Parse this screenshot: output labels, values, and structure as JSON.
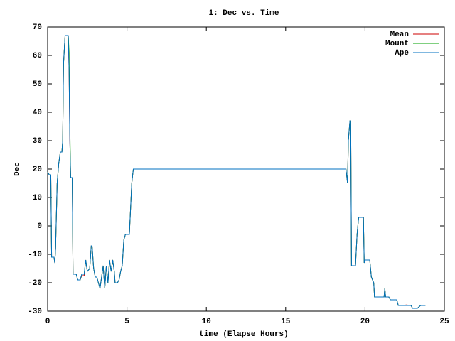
{
  "chart_data": {
    "type": "line",
    "title": "1: Dec vs. Time",
    "x_label": "time (Elapse Hours)",
    "y_label": "Dec",
    "x": [
      0,
      0.1,
      0.2,
      0.25,
      0.4,
      0.45,
      0.5,
      0.6,
      0.7,
      0.8,
      0.9,
      0.95,
      1.0,
      1.1,
      1.3,
      1.35,
      1.4,
      1.45,
      1.55,
      1.6,
      1.8,
      1.9,
      2.05,
      2.15,
      2.3,
      2.4,
      2.5,
      2.65,
      2.75,
      2.8,
      2.9,
      3.0,
      3.1,
      3.2,
      3.3,
      3.4,
      3.5,
      3.6,
      3.7,
      3.8,
      3.9,
      4.0,
      4.1,
      4.2,
      4.25,
      4.4,
      4.5,
      4.6,
      4.7,
      4.8,
      4.9,
      5.0,
      5.15,
      5.3,
      5.4,
      18.8,
      18.9,
      18.95,
      19.05,
      19.1,
      19.15,
      19.4,
      19.5,
      19.6,
      19.9,
      19.95,
      20.0,
      20.3,
      20.4,
      20.55,
      20.6,
      21.1,
      21.2,
      21.25,
      21.3,
      21.5,
      21.6,
      22.0,
      22.1,
      22.4,
      22.6,
      22.9,
      23.0,
      23.3,
      23.5,
      23.8
    ],
    "series": [
      {
        "name": "Mean",
        "color": "#cc0000",
        "values": [
          19,
          18,
          18,
          -11,
          -11,
          -13,
          -8,
          15,
          22,
          26,
          26,
          30,
          57,
          67,
          67,
          55,
          30,
          17,
          17,
          -17,
          -17,
          -19,
          -19,
          -17.5,
          -17.5,
          -12,
          -16,
          -15,
          -7,
          -7,
          -15,
          -18,
          -18,
          -20,
          -22,
          -18,
          -14,
          -22,
          -14,
          -20,
          -12,
          -16,
          -12,
          -16,
          -20,
          -20,
          -19,
          -16,
          -14,
          -5,
          -3,
          -3,
          -3,
          15,
          20,
          20,
          15,
          30,
          37,
          37,
          -14,
          -14,
          -3,
          3,
          3,
          -13,
          -12,
          -12,
          -18,
          -20,
          -25,
          -25,
          -25,
          -22,
          -25,
          -25,
          -26,
          -26,
          -28,
          -28,
          -27.8,
          -28,
          -29,
          -29,
          -28,
          -28
        ]
      },
      {
        "name": "Mount",
        "color": "#00a000",
        "values": [
          19,
          18,
          18,
          -11,
          -11,
          -13,
          -8,
          15,
          22,
          26,
          26,
          30,
          57,
          67,
          67,
          61,
          35,
          17,
          17,
          -17,
          -17,
          -19,
          -19,
          -17,
          -17,
          -12,
          -16,
          -15,
          -7,
          -7,
          -15,
          -18,
          -18,
          -20,
          -22,
          -18,
          -14,
          -22,
          -14,
          -20,
          -12,
          -16,
          -12,
          -16,
          -20,
          -20,
          -19,
          -16,
          -14,
          -5,
          -3,
          -3,
          -3,
          15,
          20,
          20,
          15,
          30,
          37,
          37,
          -14,
          -14,
          -3,
          3,
          3,
          -13,
          -12,
          -12,
          -18,
          -20,
          -25,
          -25,
          -25,
          -22,
          -25,
          -25,
          -26,
          -26,
          -28,
          -28,
          -28,
          -28,
          -29,
          -29,
          -28,
          -28
        ]
      },
      {
        "name": "Ape",
        "color": "#0070c0",
        "values": [
          19,
          18,
          18,
          -11,
          -11,
          -13,
          -8,
          15,
          22,
          26,
          26,
          30,
          57,
          67,
          67,
          55,
          30,
          17,
          17,
          -17,
          -17,
          -19,
          -19,
          -17,
          -17,
          -12,
          -16,
          -15,
          -7,
          -7,
          -15,
          -18,
          -18,
          -20,
          -22,
          -18,
          -14,
          -22,
          -14,
          -20,
          -12,
          -16,
          -12,
          -16,
          -20,
          -20,
          -19,
          -16,
          -14,
          -5,
          -3,
          -3,
          -3,
          15,
          20,
          20,
          15,
          30,
          37,
          37,
          -14,
          -14,
          -3,
          3,
          3,
          -13,
          -12,
          -12,
          -18,
          -20,
          -25,
          -25,
          -25,
          -22,
          -25,
          -25,
          -26,
          -26,
          -28,
          -28,
          -28,
          -28,
          -29,
          -29,
          -28,
          -28
        ]
      }
    ],
    "xlim": [
      0,
      25
    ],
    "xticks": [
      0,
      5,
      10,
      15,
      20,
      25
    ],
    "ylim": [
      -30,
      70
    ],
    "yticks": [
      -30,
      -20,
      -10,
      0,
      10,
      20,
      30,
      40,
      50,
      60,
      70
    ],
    "grid": false,
    "legend": "top-right"
  }
}
